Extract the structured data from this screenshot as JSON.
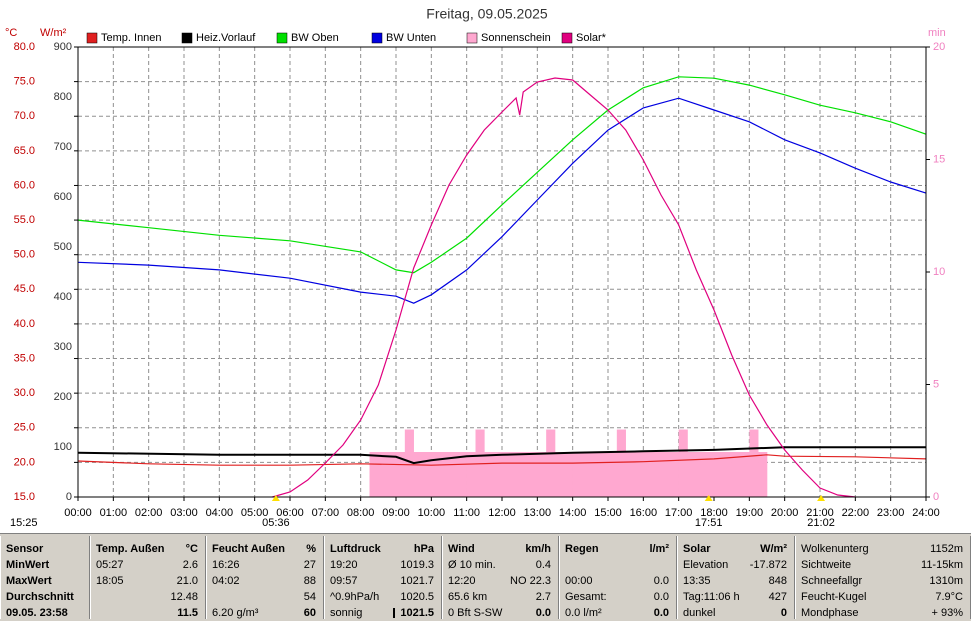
{
  "chart_data": {
    "type": "line",
    "title": "Freitag, 09.05.2025",
    "y_unit": "°C",
    "y2_unit": "W/m²",
    "y3_unit": "min",
    "xlim": [
      0,
      24
    ],
    "xticks": [
      {
        "value": 0,
        "label": "00:00"
      },
      {
        "value": 1,
        "label": "01:00"
      },
      {
        "value": 2,
        "label": "02:00"
      },
      {
        "value": 3,
        "label": "03:00"
      },
      {
        "value": 4,
        "label": "04:00"
      },
      {
        "value": 5,
        "label": "05:00"
      },
      {
        "value": 6,
        "label": "06:00"
      },
      {
        "value": 7,
        "label": "07:00"
      },
      {
        "value": 8,
        "label": "08:00"
      },
      {
        "value": 9,
        "label": "09:00"
      },
      {
        "value": 10,
        "label": "10:00"
      },
      {
        "value": 11,
        "label": "11:00"
      },
      {
        "value": 12,
        "label": "12:00"
      },
      {
        "value": 13,
        "label": "13:00"
      },
      {
        "value": 14,
        "label": "14:00"
      },
      {
        "value": 15,
        "label": "15:00"
      },
      {
        "value": 16,
        "label": "16:00"
      },
      {
        "value": 17,
        "label": "17:00"
      },
      {
        "value": 18,
        "label": "18:00"
      },
      {
        "value": 19,
        "label": "19:00"
      },
      {
        "value": 20,
        "label": "20:00"
      },
      {
        "value": 21,
        "label": "21:00"
      },
      {
        "value": 22,
        "label": "22:00"
      },
      {
        "value": 23,
        "label": "23:00"
      },
      {
        "value": 24,
        "label": "24:00"
      }
    ],
    "ylim": [
      15,
      80
    ],
    "yticks": [
      {
        "value": 80,
        "label": "80.0"
      },
      {
        "value": 75,
        "label": "75.0"
      },
      {
        "value": 70,
        "label": "70.0"
      },
      {
        "value": 65,
        "label": "65.0"
      },
      {
        "value": 60,
        "label": "60.0"
      },
      {
        "value": 55,
        "label": "55.0"
      },
      {
        "value": 50,
        "label": "50.0"
      },
      {
        "value": 45,
        "label": "45.0"
      },
      {
        "value": 40,
        "label": "40.0"
      },
      {
        "value": 35,
        "label": "35.0"
      },
      {
        "value": 30,
        "label": "30.0"
      },
      {
        "value": 25,
        "label": "25.0"
      },
      {
        "value": 20,
        "label": "20.0"
      },
      {
        "value": 15,
        "label": "15.0"
      }
    ],
    "y2lim": [
      0,
      900
    ],
    "y2ticks": [
      900,
      800,
      700,
      600,
      500,
      400,
      300,
      200,
      100,
      0
    ],
    "y3lim": [
      0,
      20
    ],
    "y3ticks": [
      20,
      15,
      10,
      5,
      0
    ],
    "grid": true,
    "corner_label": "15:25",
    "annotations": [
      {
        "x": 5.6,
        "label": "05:36"
      },
      {
        "x": 17.85,
        "label": "17:51"
      },
      {
        "x": 21.03,
        "label": "21:02"
      }
    ],
    "series": [
      {
        "name": "Temp. Innen",
        "color": "#e02020",
        "x": [
          0,
          2,
          4,
          6,
          8,
          10,
          12,
          14,
          16,
          18,
          19.5,
          20,
          22,
          24
        ],
        "values": [
          20.2,
          19.8,
          19.6,
          19.6,
          19.8,
          19.6,
          19.9,
          19.9,
          20.1,
          20.5,
          21.1,
          20.9,
          20.8,
          20.5
        ]
      },
      {
        "name": "Heiz.Vorlauf",
        "color": "#000000",
        "x": [
          0,
          4,
          8,
          9,
          9.5,
          10,
          11,
          12,
          14,
          16,
          18,
          20,
          24
        ],
        "values": [
          21.4,
          21.1,
          21.1,
          20.8,
          19.9,
          20.3,
          20.9,
          21.1,
          21.4,
          21.6,
          21.8,
          22.2,
          22.2
        ]
      },
      {
        "name": "BW Oben",
        "color": "#00e000",
        "x": [
          0,
          2,
          4,
          6,
          8,
          9,
          9.5,
          10,
          11,
          12,
          13,
          14,
          15,
          16,
          17,
          18,
          19,
          20,
          21,
          22,
          23,
          24
        ],
        "values": [
          55.0,
          53.9,
          52.8,
          52.0,
          50.4,
          47.8,
          47.4,
          48.9,
          52.4,
          57.2,
          61.9,
          66.6,
          70.9,
          74.1,
          75.7,
          75.5,
          74.5,
          73.1,
          71.6,
          70.5,
          69.2,
          67.4
        ]
      },
      {
        "name": "BW Unten",
        "color": "#0000e0",
        "x": [
          0,
          2,
          4,
          6,
          8,
          9,
          9.5,
          10,
          11,
          12,
          13,
          14,
          15,
          16,
          17,
          18,
          19,
          20,
          21,
          22,
          23,
          24
        ],
        "values": [
          48.9,
          48.5,
          47.8,
          46.6,
          44.6,
          44.0,
          43.0,
          44.2,
          47.8,
          52.6,
          57.9,
          63.2,
          68.0,
          71.2,
          72.6,
          70.9,
          69.2,
          66.6,
          64.7,
          62.5,
          60.5,
          58.9
        ]
      },
      {
        "name": "Sonnenschein",
        "color": "#ffa8d0",
        "axis": "y3",
        "kind": "bar",
        "x": [
          8.25,
          8.5,
          8.75,
          9,
          9.25,
          9.5,
          9.75,
          10,
          10.25,
          10.5,
          10.75,
          11,
          11.25,
          11.5,
          11.75,
          12,
          12.25,
          12.5,
          12.75,
          13,
          13.25,
          13.5,
          13.75,
          14,
          14.25,
          14.5,
          14.75,
          15,
          15.25,
          15.5,
          15.75,
          16,
          16.25,
          16.5,
          16.75,
          17,
          17.25,
          17.5,
          17.75,
          18,
          18.25,
          18.5,
          18.75,
          19,
          19.25
        ],
        "values": [
          2,
          2,
          2,
          2,
          3,
          2,
          2,
          2,
          2,
          2,
          2,
          2,
          3,
          2,
          2,
          2,
          2,
          2,
          2,
          2,
          3,
          2,
          2,
          2,
          2,
          2,
          2,
          2,
          3,
          2,
          2,
          2,
          2,
          2,
          2,
          3,
          2,
          2,
          2,
          2,
          2,
          2,
          2,
          3,
          2
        ]
      },
      {
        "name": "Solar*",
        "color": "#e0007f",
        "axis": "y2",
        "x": [
          5.5,
          6,
          6.5,
          7,
          7.5,
          8,
          8.5,
          9,
          9.5,
          10,
          10.5,
          11,
          11.5,
          12,
          12.4,
          12.5,
          12.6,
          13,
          13.5,
          14,
          14.5,
          15,
          15.5,
          16,
          16.5,
          17,
          17.5,
          18,
          18.5,
          19,
          19.5,
          20,
          20.5,
          21,
          21.5,
          22
        ],
        "values": [
          0,
          10,
          34,
          68,
          104,
          154,
          224,
          334,
          458,
          544,
          624,
          684,
          734,
          770,
          798,
          764,
          810,
          830,
          838,
          834,
          804,
          774,
          734,
          674,
          604,
          544,
          454,
          374,
          284,
          204,
          144,
          94,
          54,
          18,
          4,
          0
        ]
      }
    ]
  },
  "stats": {
    "columns": [
      {
        "rows": [
          {
            "l": "Sensor"
          },
          {
            "l": "MinWert"
          },
          {
            "l": "MaxWert"
          },
          {
            "l": "Durchschnitt"
          },
          {
            "l": "09.05. 23:58"
          }
        ]
      },
      {
        "rows": [
          {
            "l": "Temp. Außen",
            "r": "°C"
          },
          {
            "l": "05:27",
            "r": "2.6"
          },
          {
            "l": "18:05",
            "r": "21.0"
          },
          {
            "r": "12.48"
          },
          {
            "r": "11.5"
          }
        ]
      },
      {
        "rows": [
          {
            "l": "Feucht Außen",
            "r": "%"
          },
          {
            "l": "16:26",
            "r": "27"
          },
          {
            "l": "04:02",
            "r": "88"
          },
          {
            "r": "54"
          },
          {
            "l": "6.20 g/m³",
            "r": "60"
          }
        ]
      },
      {
        "rows": [
          {
            "l": "Luftdruck",
            "r": "hPa"
          },
          {
            "l": "19:20",
            "r": "1019.3"
          },
          {
            "l": "09:57",
            "r": "1021.7"
          },
          {
            "l": "^0.9hPa/h",
            "r": "1020.5"
          },
          {
            "l": "sonnig",
            "r": "1021.5"
          }
        ]
      },
      {
        "rows": [
          {
            "l": "Wind",
            "r": "km/h"
          },
          {
            "l": "Ø 10 min.",
            "r": "0.4"
          },
          {
            "l": "12:20",
            "r": "NO 22.3"
          },
          {
            "l": "65.6 km",
            "r": "2.7"
          },
          {
            "l": "0 Bft S-SW",
            "r": "0.0"
          }
        ]
      },
      {
        "rows": [
          {
            "l": "Regen",
            "r": "l/m²"
          },
          {},
          {
            "l": "00:00",
            "r": "0.0"
          },
          {
            "l": "Gesamt:",
            "r": "0.0"
          },
          {
            "l": "0.0 l/m²",
            "r": "0.0"
          }
        ]
      },
      {
        "rows": [
          {
            "l": "Solar",
            "r": "W/m²"
          },
          {
            "l": "Elevation",
            "r": "-17.872"
          },
          {
            "l": "13:35",
            "r": "848"
          },
          {
            "l": "Tag:11:06 h",
            "r": "427"
          },
          {
            "l": "dunkel",
            "r": "0"
          }
        ]
      },
      {
        "rows": [
          {
            "l": "Wolkenunterg",
            "r": "1152m"
          },
          {
            "l": "Sichtweite",
            "r": "11-15km"
          },
          {
            "l": "Schneefallgr",
            "r": "1310m"
          },
          {
            "l": "Feucht-Kugel",
            "r": "7.9°C"
          },
          {
            "l": "Mondphase",
            "r": "+ 93%"
          }
        ]
      }
    ]
  }
}
